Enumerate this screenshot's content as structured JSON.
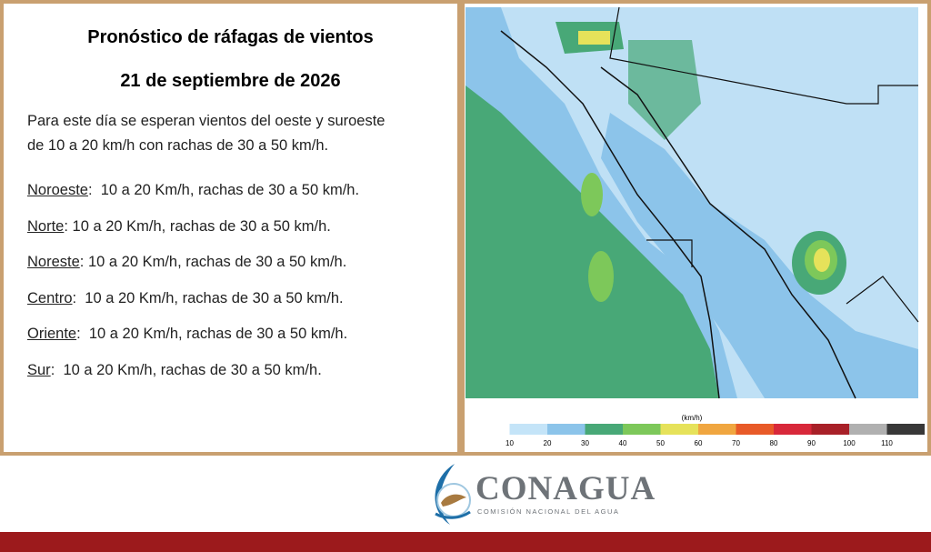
{
  "header": {
    "title": "Pronóstico de ráfagas de vientos",
    "date": "21 de septiembre  de 2026"
  },
  "summary": [
    "Para este día se esperan vientos del oeste y suroeste",
    "de 10 a 20 km/h con rachas de 30 a 50 km/h."
  ],
  "regions": [
    {
      "name": "Noroeste",
      "text": ":  10 a 20 Km/h, rachas de 30 a 50 km/h."
    },
    {
      "name": "Norte",
      "text": ": 10 a 20 Km/h, rachas de 30 a 50 km/h."
    },
    {
      "name": "Noreste",
      "text": ": 10 a 20 Km/h, rachas de 30 a 50 km/h."
    },
    {
      "name": "Centro",
      "text": ":  10 a 20 Km/h, rachas de 30 a 50 km/h."
    },
    {
      "name": "Oriente",
      "text": ":  10 a 20 Km/h, rachas de 30 a 50 km/h."
    },
    {
      "name": "Sur",
      "text": ":  10 a 20 Km/h, rachas de 30 a 50 km/h."
    }
  ],
  "legend": {
    "unit": "(km/h)",
    "colors": [
      "#ffffff",
      "#c4e4f8",
      "#8cc4ea",
      "#48a877",
      "#7dc85a",
      "#e6e25a",
      "#f0a640",
      "#e85a28",
      "#d8283a",
      "#a82028",
      "#b0b0b0",
      "#383838"
    ],
    "ticks": [
      10,
      20,
      30,
      40,
      50,
      60,
      70,
      80,
      90,
      100,
      110
    ]
  },
  "logo": {
    "name": "CONAGUA",
    "subtitle": "COMISIÓN NACIONAL DEL AGUA"
  }
}
